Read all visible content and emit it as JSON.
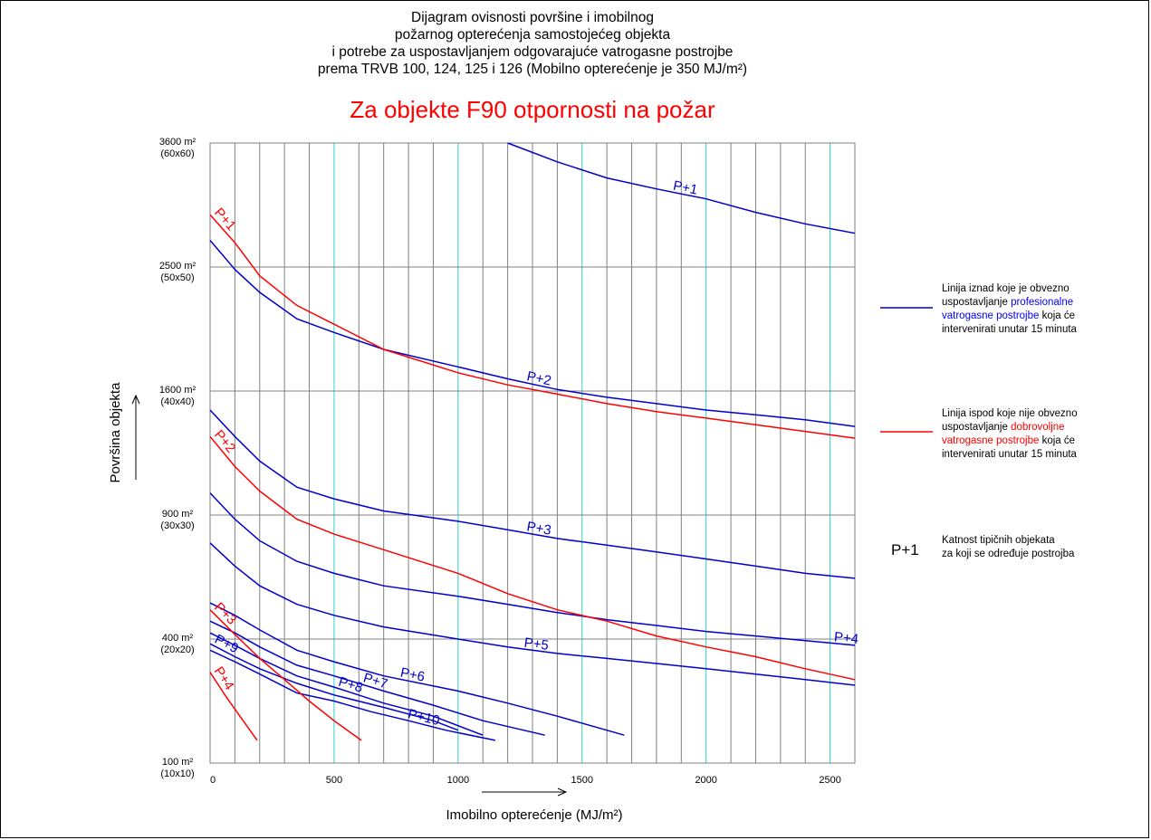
{
  "chart_data": {
    "type": "line",
    "title_lines": [
      "Dijagram ovisnosti površine i imobilnog",
      "požarnog opterećenja samostojećeg objekta",
      "i potrebe za uspostavljanjem odgovarajuće vatrogasne postrojbe",
      "prema TRVB 100, 124, 125 i 126 (Mobilno opterećenje je 350 MJ/m²)"
    ],
    "subtitle": "Za objekte F90 otpornosti na požar",
    "xlabel": "Imobilno opterećenje (MJ/m²)",
    "ylabel": "Površina objekta",
    "xlim": [
      0,
      2600
    ],
    "x_ticks": [
      0,
      500,
      1000,
      1500,
      2000,
      2500
    ],
    "y_scale": "sqrt",
    "ylim": [
      100,
      3600
    ],
    "y_ticks": [
      {
        "value": 100,
        "label": "100 m²",
        "sub": "(10x10)"
      },
      {
        "value": 400,
        "label": "400 m²",
        "sub": "(20x20)"
      },
      {
        "value": 900,
        "label": "900 m²",
        "sub": "(30x30)"
      },
      {
        "value": 1600,
        "label": "1600 m²",
        "sub": "(40x40)"
      },
      {
        "value": 2500,
        "label": "2500 m²",
        "sub": "(50x50)"
      },
      {
        "value": 3600,
        "label": "3600 m²",
        "sub": "(60x60)"
      }
    ],
    "grid": true,
    "series": [
      {
        "name": "P+1",
        "color": "#0000cc",
        "label_x": 1850,
        "x": [
          1200,
          1400,
          1600,
          1800,
          2000,
          2200,
          2400,
          2600
        ],
        "y": [
          3600,
          3420,
          3270,
          3170,
          3080,
          2960,
          2860,
          2780
        ]
      },
      {
        "name": "P+2",
        "color": "#0000cc",
        "label_x": 1260,
        "x": [
          0,
          100,
          200,
          350,
          500,
          700,
          1000,
          1200,
          1400,
          1600,
          1800,
          2000,
          2200,
          2400,
          2600
        ],
        "y": [
          2720,
          2480,
          2300,
          2100,
          2000,
          1880,
          1760,
          1680,
          1610,
          1560,
          1520,
          1480,
          1450,
          1420,
          1380
        ]
      },
      {
        "name": "P+3",
        "color": "#0000cc",
        "label_x": 1260,
        "x": [
          0,
          100,
          200,
          350,
          500,
          700,
          1000,
          1200,
          1400,
          1600,
          1800,
          2000,
          2200,
          2400,
          2600
        ],
        "y": [
          1480,
          1320,
          1180,
          1040,
          980,
          920,
          870,
          830,
          790,
          760,
          730,
          700,
          670,
          640,
          620
        ]
      },
      {
        "name": "P+4",
        "color": "#0000cc",
        "label_x": 2500,
        "x": [
          0,
          100,
          200,
          350,
          500,
          700,
          1000,
          1200,
          1400,
          1600,
          1800,
          2000,
          2200,
          2400,
          2600
        ],
        "y": [
          1010,
          880,
          780,
          690,
          640,
          590,
          550,
          520,
          490,
          465,
          445,
          425,
          410,
          395,
          380
        ]
      },
      {
        "name": "P+5",
        "color": "#0000cc",
        "label_x": 1250,
        "x": [
          0,
          100,
          200,
          350,
          500,
          700,
          1000,
          1200,
          1400,
          1600,
          1800,
          2000,
          2200,
          2400,
          2600
        ],
        "y": [
          770,
          670,
          590,
          520,
          480,
          440,
          400,
          375,
          355,
          340,
          325,
          310,
          295,
          280,
          265
        ]
      },
      {
        "name": "P+6",
        "color": "#0000cc",
        "label_x": 750,
        "x": [
          0,
          100,
          200,
          350,
          500,
          700,
          1000,
          1200,
          1400,
          1670
        ],
        "y": [
          525,
          480,
          430,
          365,
          330,
          290,
          250,
          220,
          190,
          150
        ]
      },
      {
        "name": "P+7",
        "color": "#0000cc",
        "label_x": 600,
        "x": [
          0,
          100,
          200,
          350,
          500,
          700,
          900,
          1100,
          1350
        ],
        "y": [
          460,
          420,
          375,
          320,
          290,
          250,
          215,
          180,
          150
        ]
      },
      {
        "name": "P+8",
        "color": "#0000cc",
        "label_x": 500,
        "x": [
          0,
          100,
          200,
          350,
          500,
          700,
          900,
          1100
        ],
        "y": [
          420,
          380,
          340,
          290,
          260,
          220,
          190,
          150
        ]
      },
      {
        "name": "P+9",
        "color": "#0000cc",
        "label_x": 0,
        "x": [
          0,
          100,
          200,
          350,
          500,
          700,
          900,
          1000
        ],
        "y": [
          385,
          345,
          310,
          270,
          240,
          210,
          180,
          160
        ]
      },
      {
        "name": "P+10",
        "color": "#0000cc",
        "label_x": 780,
        "x": [
          0,
          100,
          200,
          350,
          500,
          650,
          800,
          950,
          1150
        ],
        "y": [
          365,
          330,
          295,
          245,
          225,
          200,
          180,
          160,
          140
        ]
      },
      {
        "name": "P+1",
        "color": "#ff0000",
        "label_x": 0,
        "x": [
          0,
          100,
          200,
          350,
          500,
          700,
          1000,
          1200,
          1400,
          1600,
          1800,
          2000,
          2200,
          2400,
          2600
        ],
        "y": [
          2940,
          2700,
          2430,
          2200,
          2060,
          1880,
          1720,
          1640,
          1580,
          1520,
          1470,
          1430,
          1390,
          1350,
          1310
        ]
      },
      {
        "name": "P+2",
        "color": "#ff0000",
        "label_x": 0,
        "x": [
          0,
          100,
          200,
          350,
          500,
          700,
          1000,
          1200,
          1400,
          1600,
          1800,
          2000,
          2200,
          2400,
          2600
        ],
        "y": [
          1320,
          1150,
          1020,
          880,
          810,
          740,
          640,
          560,
          500,
          460,
          410,
          375,
          345,
          310,
          280
        ]
      },
      {
        "name": "P+3",
        "color": "#ff0000",
        "label_x": 0,
        "x": [
          0,
          100,
          200,
          300,
          400,
          500,
          610
        ],
        "y": [
          500,
          415,
          340,
          280,
          225,
          180,
          140
        ]
      },
      {
        "name": "P+4",
        "color": "#ff0000",
        "label_x": 0,
        "x": [
          0,
          60,
          120,
          190
        ],
        "y": [
          300,
          240,
          190,
          140
        ]
      }
    ],
    "legend": [
      {
        "text_a": "Linija iznad koje je obvezno",
        "text_b": "uspostavljanje ",
        "highlight_a": "profesionalne",
        "highlight_b": "vatrogasne postrojbe",
        "text_c": " koja će",
        "text_d": "intervenirati unutar 15 minuta",
        "color": "#0000cc"
      },
      {
        "text_a": "Linija ispod koje nije obvezno",
        "text_b": "uspostavljanje ",
        "highlight_a": "dobrovoljne",
        "highlight_b": "vatrogasne postrojbe",
        "text_c": " koja će",
        "text_d": "intervenirati unutar 15 minuta",
        "color": "#ff0000"
      },
      {
        "sample": "P+1",
        "text_a": "Katnost tipičnih objekata",
        "text_b": "za koji se određuje postrojba"
      }
    ]
  }
}
